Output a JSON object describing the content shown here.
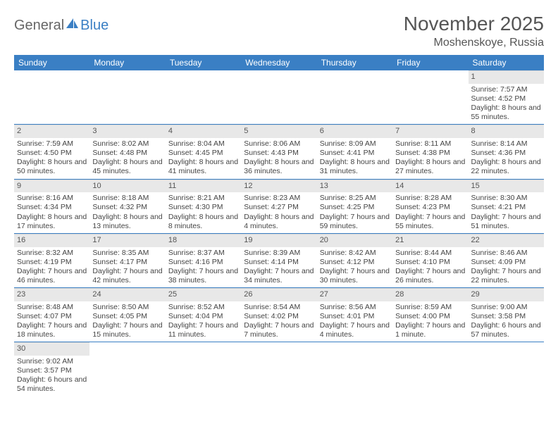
{
  "logo": {
    "text1": "General",
    "text2": "Blue"
  },
  "title": "November 2025",
  "location": "Moshenskoye, Russia",
  "colors": {
    "header_bg": "#3a7fc4",
    "header_text": "#ffffff",
    "daynum_bg": "#e8e8e8",
    "border": "#3a7fc4"
  },
  "weekdays": [
    "Sunday",
    "Monday",
    "Tuesday",
    "Wednesday",
    "Thursday",
    "Friday",
    "Saturday"
  ],
  "weeks": [
    [
      null,
      null,
      null,
      null,
      null,
      null,
      {
        "n": "1",
        "sr": "Sunrise: 7:57 AM",
        "ss": "Sunset: 4:52 PM",
        "dl": "Daylight: 8 hours and 55 minutes."
      }
    ],
    [
      {
        "n": "2",
        "sr": "Sunrise: 7:59 AM",
        "ss": "Sunset: 4:50 PM",
        "dl": "Daylight: 8 hours and 50 minutes."
      },
      {
        "n": "3",
        "sr": "Sunrise: 8:02 AM",
        "ss": "Sunset: 4:48 PM",
        "dl": "Daylight: 8 hours and 45 minutes."
      },
      {
        "n": "4",
        "sr": "Sunrise: 8:04 AM",
        "ss": "Sunset: 4:45 PM",
        "dl": "Daylight: 8 hours and 41 minutes."
      },
      {
        "n": "5",
        "sr": "Sunrise: 8:06 AM",
        "ss": "Sunset: 4:43 PM",
        "dl": "Daylight: 8 hours and 36 minutes."
      },
      {
        "n": "6",
        "sr": "Sunrise: 8:09 AM",
        "ss": "Sunset: 4:41 PM",
        "dl": "Daylight: 8 hours and 31 minutes."
      },
      {
        "n": "7",
        "sr": "Sunrise: 8:11 AM",
        "ss": "Sunset: 4:38 PM",
        "dl": "Daylight: 8 hours and 27 minutes."
      },
      {
        "n": "8",
        "sr": "Sunrise: 8:14 AM",
        "ss": "Sunset: 4:36 PM",
        "dl": "Daylight: 8 hours and 22 minutes."
      }
    ],
    [
      {
        "n": "9",
        "sr": "Sunrise: 8:16 AM",
        "ss": "Sunset: 4:34 PM",
        "dl": "Daylight: 8 hours and 17 minutes."
      },
      {
        "n": "10",
        "sr": "Sunrise: 8:18 AM",
        "ss": "Sunset: 4:32 PM",
        "dl": "Daylight: 8 hours and 13 minutes."
      },
      {
        "n": "11",
        "sr": "Sunrise: 8:21 AM",
        "ss": "Sunset: 4:30 PM",
        "dl": "Daylight: 8 hours and 8 minutes."
      },
      {
        "n": "12",
        "sr": "Sunrise: 8:23 AM",
        "ss": "Sunset: 4:27 PM",
        "dl": "Daylight: 8 hours and 4 minutes."
      },
      {
        "n": "13",
        "sr": "Sunrise: 8:25 AM",
        "ss": "Sunset: 4:25 PM",
        "dl": "Daylight: 7 hours and 59 minutes."
      },
      {
        "n": "14",
        "sr": "Sunrise: 8:28 AM",
        "ss": "Sunset: 4:23 PM",
        "dl": "Daylight: 7 hours and 55 minutes."
      },
      {
        "n": "15",
        "sr": "Sunrise: 8:30 AM",
        "ss": "Sunset: 4:21 PM",
        "dl": "Daylight: 7 hours and 51 minutes."
      }
    ],
    [
      {
        "n": "16",
        "sr": "Sunrise: 8:32 AM",
        "ss": "Sunset: 4:19 PM",
        "dl": "Daylight: 7 hours and 46 minutes."
      },
      {
        "n": "17",
        "sr": "Sunrise: 8:35 AM",
        "ss": "Sunset: 4:17 PM",
        "dl": "Daylight: 7 hours and 42 minutes."
      },
      {
        "n": "18",
        "sr": "Sunrise: 8:37 AM",
        "ss": "Sunset: 4:16 PM",
        "dl": "Daylight: 7 hours and 38 minutes."
      },
      {
        "n": "19",
        "sr": "Sunrise: 8:39 AM",
        "ss": "Sunset: 4:14 PM",
        "dl": "Daylight: 7 hours and 34 minutes."
      },
      {
        "n": "20",
        "sr": "Sunrise: 8:42 AM",
        "ss": "Sunset: 4:12 PM",
        "dl": "Daylight: 7 hours and 30 minutes."
      },
      {
        "n": "21",
        "sr": "Sunrise: 8:44 AM",
        "ss": "Sunset: 4:10 PM",
        "dl": "Daylight: 7 hours and 26 minutes."
      },
      {
        "n": "22",
        "sr": "Sunrise: 8:46 AM",
        "ss": "Sunset: 4:09 PM",
        "dl": "Daylight: 7 hours and 22 minutes."
      }
    ],
    [
      {
        "n": "23",
        "sr": "Sunrise: 8:48 AM",
        "ss": "Sunset: 4:07 PM",
        "dl": "Daylight: 7 hours and 18 minutes."
      },
      {
        "n": "24",
        "sr": "Sunrise: 8:50 AM",
        "ss": "Sunset: 4:05 PM",
        "dl": "Daylight: 7 hours and 15 minutes."
      },
      {
        "n": "25",
        "sr": "Sunrise: 8:52 AM",
        "ss": "Sunset: 4:04 PM",
        "dl": "Daylight: 7 hours and 11 minutes."
      },
      {
        "n": "26",
        "sr": "Sunrise: 8:54 AM",
        "ss": "Sunset: 4:02 PM",
        "dl": "Daylight: 7 hours and 7 minutes."
      },
      {
        "n": "27",
        "sr": "Sunrise: 8:56 AM",
        "ss": "Sunset: 4:01 PM",
        "dl": "Daylight: 7 hours and 4 minutes."
      },
      {
        "n": "28",
        "sr": "Sunrise: 8:59 AM",
        "ss": "Sunset: 4:00 PM",
        "dl": "Daylight: 7 hours and 1 minute."
      },
      {
        "n": "29",
        "sr": "Sunrise: 9:00 AM",
        "ss": "Sunset: 3:58 PM",
        "dl": "Daylight: 6 hours and 57 minutes."
      }
    ],
    [
      {
        "n": "30",
        "sr": "Sunrise: 9:02 AM",
        "ss": "Sunset: 3:57 PM",
        "dl": "Daylight: 6 hours and 54 minutes."
      },
      null,
      null,
      null,
      null,
      null,
      null
    ]
  ]
}
